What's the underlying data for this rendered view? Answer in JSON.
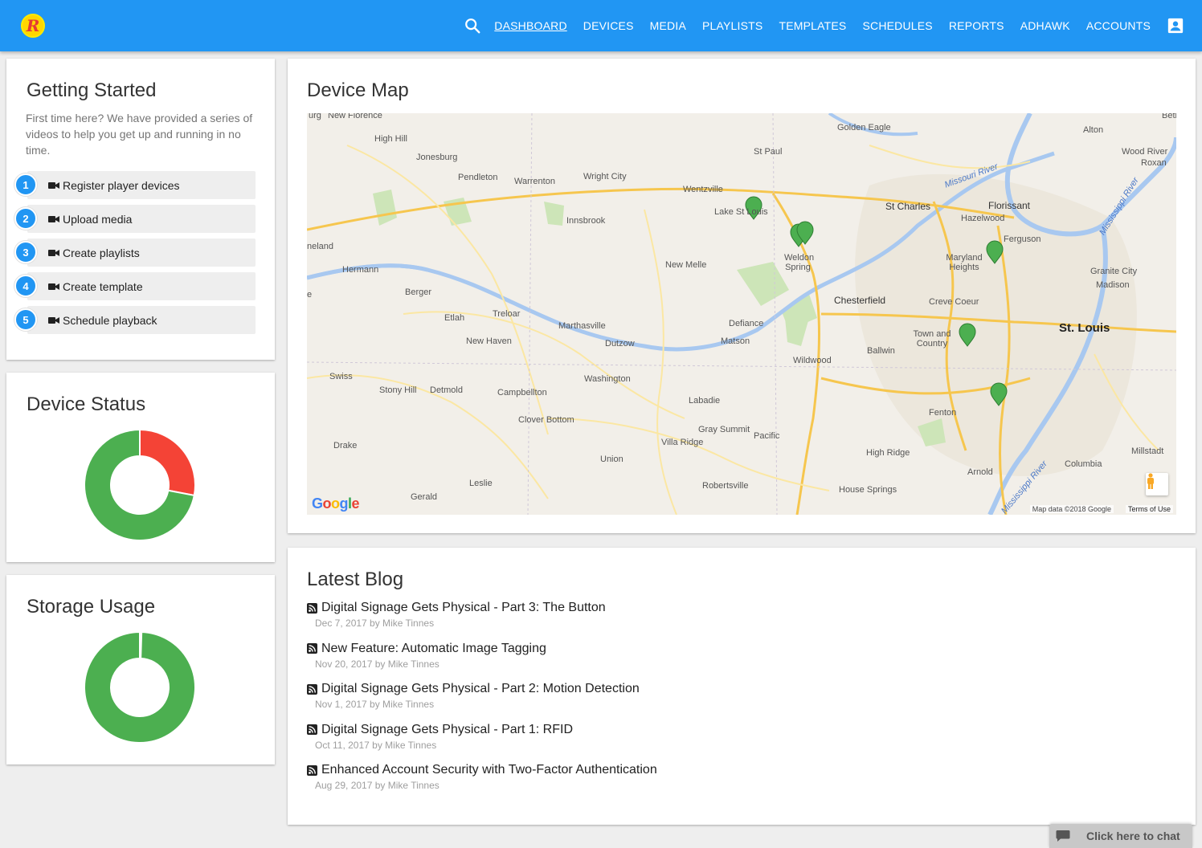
{
  "header": {
    "logo_letter": "R",
    "nav": [
      "DASHBOARD",
      "DEVICES",
      "MEDIA",
      "PLAYLISTS",
      "TEMPLATES",
      "SCHEDULES",
      "REPORTS",
      "ADHAWK",
      "ACCOUNTS"
    ],
    "active": "DASHBOARD",
    "icons": [
      "search-icon",
      "account-box-icon"
    ]
  },
  "getting_started": {
    "title": "Getting Started",
    "intro": "First time here? We have provided a series of videos to help you get up and running in no time.",
    "steps": [
      {
        "num": "1",
        "label": "Register player devices"
      },
      {
        "num": "2",
        "label": "Upload media"
      },
      {
        "num": "3",
        "label": "Create playlists"
      },
      {
        "num": "4",
        "label": "Create template"
      },
      {
        "num": "5",
        "label": "Schedule playback"
      }
    ]
  },
  "device_status": {
    "title": "Device Status",
    "chart_data": {
      "type": "pie",
      "donut": true,
      "slices": [
        {
          "value": 28,
          "color": "#f44336"
        },
        {
          "value": 72,
          "color": "#4caf50"
        }
      ]
    }
  },
  "storage_usage": {
    "title": "Storage Usage",
    "chart_data": {
      "type": "pie",
      "donut": true,
      "slices": [
        {
          "value": 0.5,
          "color": "#e0e0e0"
        },
        {
          "value": 99.5,
          "color": "#4caf50"
        }
      ]
    }
  },
  "device_map": {
    "title": "Device Map",
    "attribution": "Map data ©2018 Google",
    "terms": "Terms of Use",
    "google": [
      "G",
      "o",
      "o",
      "g",
      "l",
      "e"
    ],
    "labels": {
      "new_florence": "New Florence",
      "golden_eagle": "Golden Eagle",
      "alton": "Alton",
      "wood_river": "Wood River",
      "roxana": "Roxan",
      "bethalto": "Betl",
      "high_hill": "High Hill",
      "jonesburg": "Jonesburg",
      "st_paul": "St Paul",
      "pendleton": "Pendleton",
      "warrenton": "Warrenton",
      "wright_city": "Wright City",
      "wentzville": "Wentzville",
      "lake_st_louis": "Lake St Louis",
      "st_charles": "St Charles",
      "florissant": "Florissant",
      "hazelwood": "Hazelwood",
      "innsbrook": "Innsbrook",
      "ferguson": "Ferguson",
      "weldon_spring": "Weldon Spring",
      "maryland_heights": "Maryland Heights",
      "granite_city": "Granite City",
      "madison": "Madison",
      "hermann": "Hermann",
      "new_melle": "New Melle",
      "berger": "Berger",
      "chesterfield": "Chesterfield",
      "creve_coeur": "Creve Coeur",
      "st_louis": "St. Louis",
      "treloar": "Treloar",
      "etlah": "Etlah",
      "marthasville": "Marthasville",
      "defiance": "Defiance",
      "town_country": "Town and Country",
      "new_haven": "New Haven",
      "dutzow": "Dutzow",
      "matson": "Matson",
      "ballwin": "Ballwin",
      "wildwood": "Wildwood",
      "swiss": "Swiss",
      "washington": "Washington",
      "stony_hill": "Stony Hill",
      "detmold": "Detmold",
      "campbellton": "Campbellton",
      "labadie": "Labadie",
      "fenton": "Fenton",
      "clover_bottom": "Clover Bottom",
      "gray_summit": "Gray Summit",
      "pacific": "Pacific",
      "drake": "Drake",
      "villa_ridge": "Villa Ridge",
      "high_ridge": "High Ridge",
      "millstadt": "Millstadt",
      "union": "Union",
      "columbia": "Columbia",
      "arnold": "Arnold",
      "leslie": "Leslie",
      "gerald": "Gerald",
      "robertsville": "Robertsville",
      "house_springs": "House Springs",
      "missouri_river": "Missouri River",
      "mississippi_river": "Mississippi River",
      "mississippi_river_2": "Mississippi River",
      "burg": "urg",
      "neland": "neland",
      "e": "e"
    },
    "pins": [
      "map-pin-icon"
    ]
  },
  "latest_blog": {
    "title": "Latest Blog",
    "posts": [
      {
        "title": "Digital Signage Gets Physical - Part 3: The Button",
        "meta": "Dec 7, 2017 by Mike Tinnes"
      },
      {
        "title": "New Feature: Automatic Image Tagging",
        "meta": "Nov 20, 2017 by Mike Tinnes"
      },
      {
        "title": "Digital Signage Gets Physical - Part 2: Motion Detection",
        "meta": "Nov 1, 2017 by Mike Tinnes"
      },
      {
        "title": "Digital Signage Gets Physical - Part 1: RFID",
        "meta": "Oct 11, 2017 by Mike Tinnes"
      },
      {
        "title": "Enhanced Account Security with Two-Factor Authentication",
        "meta": "Aug 29, 2017 by Mike Tinnes"
      }
    ]
  },
  "chat": {
    "label": "Click here to chat"
  },
  "colors": {
    "primary": "#2196f3",
    "ok": "#4caf50",
    "error": "#f44336"
  }
}
